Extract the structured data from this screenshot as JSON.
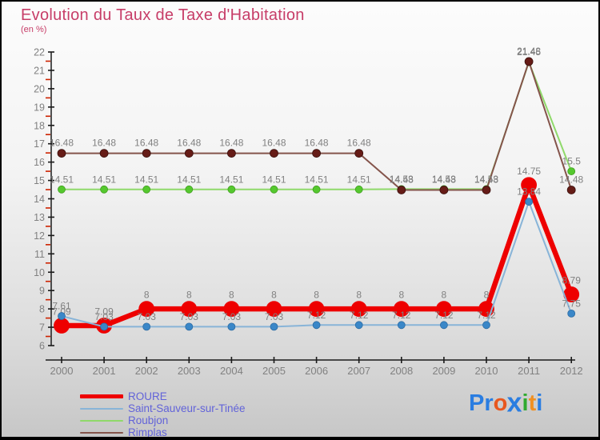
{
  "title": "Evolution du Taux de Taxe d'Habitation",
  "subtitle": "(en %)",
  "colors": {
    "title": "#c73d68",
    "axis": "#1a1a1a",
    "minor_tick": "#cc2200",
    "text_gray": "#818181",
    "legend_text": "#6263d9"
  },
  "chart_data": {
    "type": "line",
    "title": "Evolution du Taux de Taxe d'Habitation",
    "ylabel": "en %",
    "x": [
      2000,
      2001,
      2002,
      2003,
      2004,
      2005,
      2006,
      2007,
      2008,
      2009,
      2010,
      2011,
      2012
    ],
    "ylim": [
      6,
      22
    ],
    "ytick_step": 1,
    "grid": false,
    "legend_position": "bottom-left",
    "series": [
      {
        "name": "ROURE",
        "line_color": "#ee0000",
        "dot_color": "#ee0000",
        "dot_stroke": "#ee0000",
        "line_width": 6.5,
        "dot_radius": 9.5,
        "values": [
          7.09,
          7.09,
          8,
          8,
          8,
          8,
          8,
          8,
          8,
          8,
          8,
          14.75,
          8.79
        ],
        "labels": [
          "7.09",
          "7.09",
          "8",
          "8",
          "8",
          "8",
          "8",
          "8",
          "8",
          "8",
          "8",
          "14.75",
          "8.79"
        ]
      },
      {
        "name": "Saint-Sauveur-sur-Tinée",
        "line_color": "#88b4d8",
        "dot_color": "#3a87c8",
        "dot_stroke": "#2d6ca3",
        "line_width": 2,
        "dot_radius": 4.5,
        "values": [
          7.61,
          7.03,
          7.03,
          7.03,
          7.03,
          7.03,
          7.12,
          7.12,
          7.12,
          7.12,
          7.12,
          13.84,
          7.75
        ],
        "labels": [
          "7.61",
          "7.03",
          "7.03",
          "7.03",
          "7.03",
          "7.03",
          "7.12",
          "7.12",
          "7.12",
          "7.12",
          "7.12",
          "13.84",
          "7.75"
        ]
      },
      {
        "name": "Roubjon",
        "line_color": "#8fd96a",
        "dot_color": "#55c82e",
        "dot_stroke": "#3f9e1e",
        "line_width": 2,
        "dot_radius": 4.5,
        "values": [
          14.51,
          14.51,
          14.51,
          14.51,
          14.51,
          14.51,
          14.51,
          14.51,
          14.53,
          14.53,
          14.53,
          21.45,
          15.5
        ],
        "labels": [
          "14.51",
          "14.51",
          "14.51",
          "14.51",
          "14.51",
          "14.51",
          "14.51",
          "14.51",
          "14.53",
          "14.53",
          "14.53",
          "21.45",
          "15.5"
        ]
      },
      {
        "name": "Rimplas",
        "line_color": "#84544b",
        "dot_color": "#661c17",
        "dot_stroke": "#3a100d",
        "line_width": 2,
        "dot_radius": 5,
        "values": [
          16.48,
          16.48,
          16.48,
          16.48,
          16.48,
          16.48,
          16.48,
          16.48,
          14.48,
          14.48,
          14.48,
          21.48,
          14.48
        ],
        "labels": [
          "16.48",
          "16.48",
          "16.48",
          "16.48",
          "16.48",
          "16.48",
          "16.48",
          "16.48",
          "14.48",
          "14.48",
          "14.48",
          "21.48",
          "14.48"
        ]
      }
    ]
  },
  "legend": {
    "items": [
      "ROURE",
      "Saint-Sauveur-sur-Tinée",
      "Roubjon",
      "Rimplas"
    ]
  },
  "logo": {
    "letters": [
      {
        "ch": "P",
        "color": "#2a7de1"
      },
      {
        "ch": "r",
        "color": "#2a7de1"
      },
      {
        "ch": "o",
        "color": "#e8571e"
      },
      {
        "ch": "x",
        "color": "#2a7de1"
      },
      {
        "ch": "i",
        "color": "#2faa2f"
      },
      {
        "ch": "t",
        "color": "#f09022"
      },
      {
        "ch": "i",
        "color": "#2a7de1"
      }
    ]
  }
}
